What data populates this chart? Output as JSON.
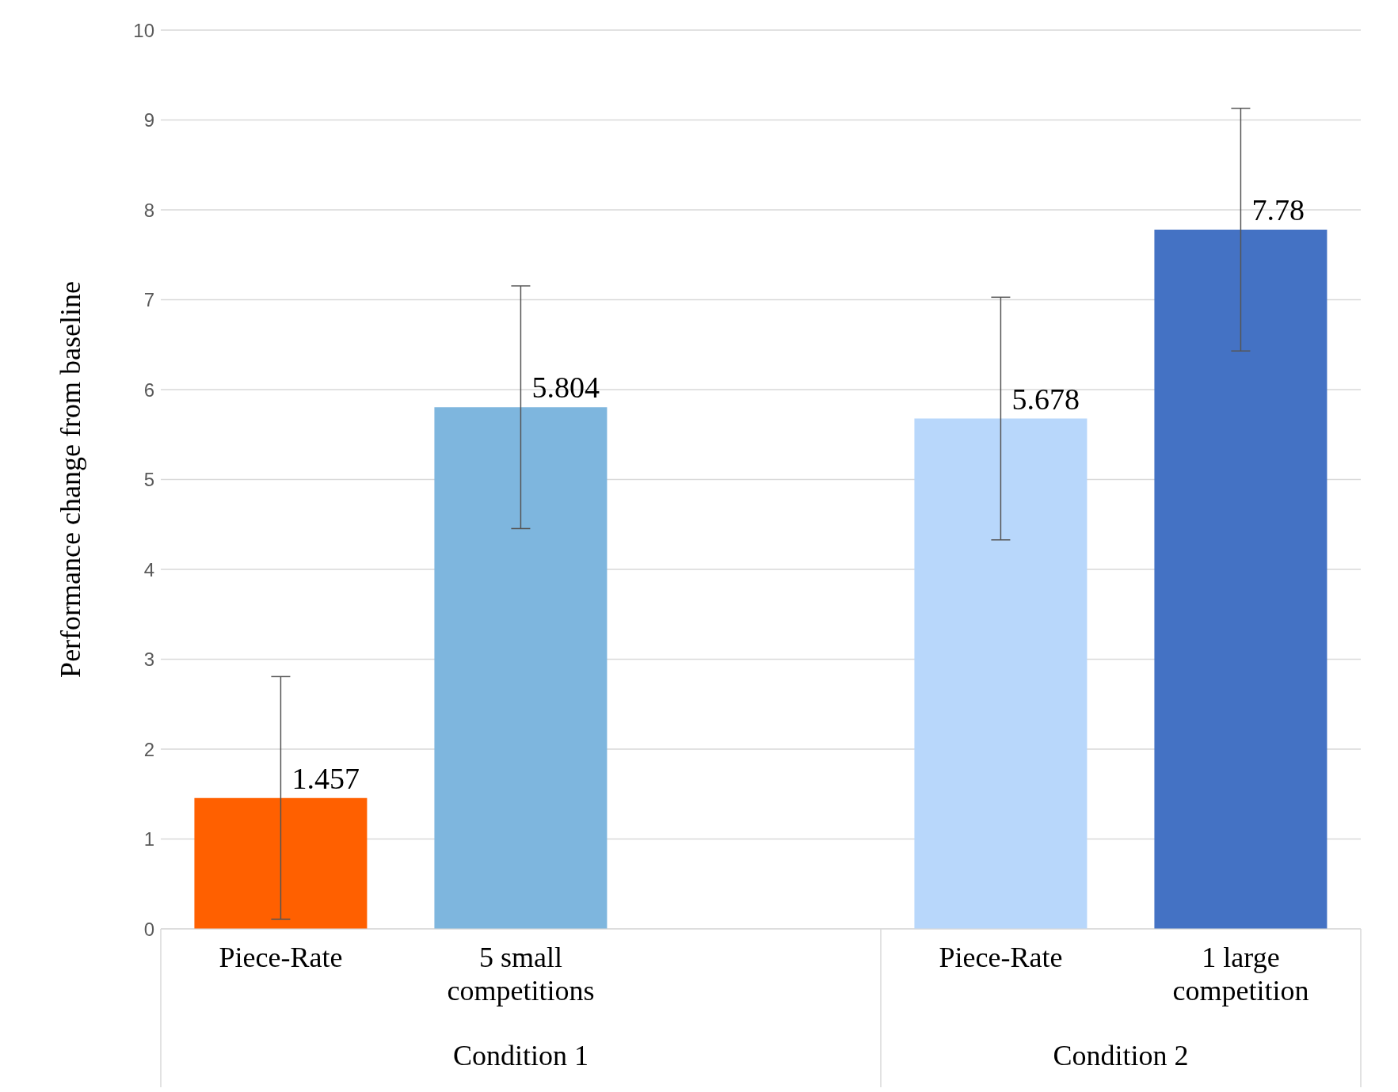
{
  "chart_data": {
    "type": "bar",
    "ylabel": "Performance change from baseline",
    "categories": [
      "Piece-Rate",
      "5 small competitions",
      null,
      "Piece-Rate",
      "1 large competition"
    ],
    "values": [
      1.457,
      5.804,
      null,
      5.678,
      7.78
    ],
    "colors": [
      "#ff6000",
      "#7eb6de",
      "#7eb6de",
      "#b8d7fb",
      "#4472c4"
    ],
    "errors": [
      1.35,
      1.35,
      null,
      1.35,
      1.35
    ],
    "data_labels": true,
    "annotations": [
      "Condition 1",
      "Condition 2"
    ],
    "ylim": [
      0,
      10
    ],
    "yticks": [
      0,
      1,
      2,
      3,
      4,
      5,
      6,
      7,
      8,
      9,
      10
    ],
    "grid": "y"
  }
}
